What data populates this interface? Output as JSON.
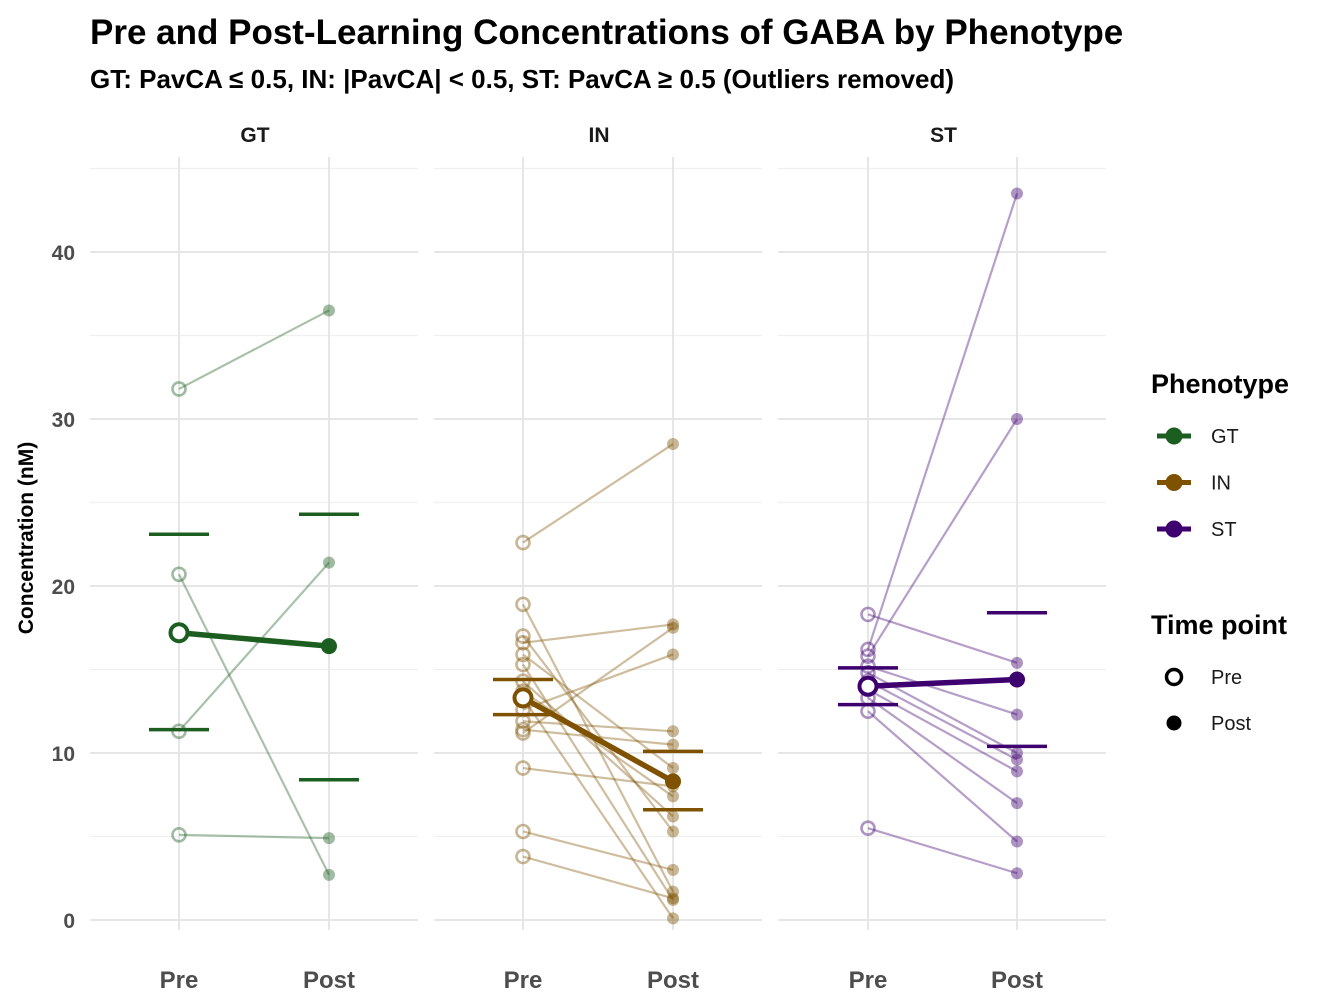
{
  "chart_data": {
    "type": "line",
    "title": "Pre and Post-Learning Concentrations of GABA by Phenotype",
    "subtitle": "GT: PavCA ≤ 0.5, IN: |PavCA| < 0.5, ST: PavCA ≥ 0.5 (Outliers removed)",
    "ylabel": "Concentration (nM)",
    "xlabel": "",
    "ylim": [
      -2,
      46
    ],
    "yticks": [
      0,
      10,
      20,
      30,
      40
    ],
    "categories": [
      "Pre",
      "Post"
    ],
    "colors": {
      "GT": "#1b5e20",
      "IN": "#7f5200",
      "ST": "#3e006f"
    },
    "legend": {
      "phenotype_title": "Phenotype",
      "phenotype_items": [
        "GT",
        "IN",
        "ST"
      ],
      "time_title": "Time point",
      "time_items": [
        "Pre",
        "Post"
      ]
    },
    "panels": [
      {
        "name": "GT",
        "individual": [
          [
            31.8,
            36.5
          ],
          [
            20.7,
            2.7
          ],
          [
            11.3,
            21.4
          ],
          [
            5.1,
            4.9
          ]
        ],
        "mean": [
          17.2,
          16.4
        ],
        "sem_pre": [
          11.4,
          23.1
        ],
        "sem_post": [
          8.4,
          24.3
        ]
      },
      {
        "name": "IN",
        "individual": [
          [
            22.6,
            28.5
          ],
          [
            18.9,
            1.7
          ],
          [
            17.0,
            5.3
          ],
          [
            16.6,
            17.7
          ],
          [
            15.9,
            9.1
          ],
          [
            15.3,
            1.2
          ],
          [
            14.3,
            6.2
          ],
          [
            13.7,
            7.4
          ],
          [
            13.3,
            0.1
          ],
          [
            12.6,
            15.9
          ],
          [
            11.9,
            11.3
          ],
          [
            11.2,
            17.5
          ],
          [
            11.4,
            10.5
          ],
          [
            9.1,
            8.0
          ],
          [
            5.3,
            3.0
          ],
          [
            3.8,
            1.3
          ]
        ],
        "mean": [
          13.3,
          8.3
        ],
        "sem_pre": [
          12.3,
          14.4
        ],
        "sem_post": [
          6.6,
          10.1
        ]
      },
      {
        "name": "ST",
        "individual": [
          [
            18.3,
            15.4
          ],
          [
            16.2,
            43.5
          ],
          [
            15.8,
            30.0
          ],
          [
            15.2,
            12.3
          ],
          [
            14.8,
            10.0
          ],
          [
            14.3,
            9.6
          ],
          [
            13.8,
            8.9
          ],
          [
            13.3,
            7.0
          ],
          [
            12.5,
            4.7
          ],
          [
            5.5,
            2.8
          ]
        ],
        "mean": [
          14.0,
          14.4
        ],
        "sem_pre": [
          12.9,
          15.1
        ],
        "sem_post": [
          10.4,
          18.4
        ]
      }
    ]
  }
}
